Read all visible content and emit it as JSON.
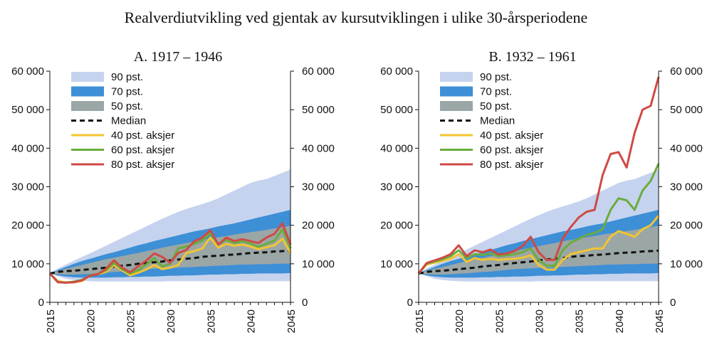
{
  "title": "Realverdiutvikling ved gjentak av kursutviklingen i ulike 30-årsperiodene",
  "colors": {
    "p90": "#c5d3ee",
    "p70": "#3d8fd6",
    "p50": "#9ba6a6",
    "median": "#111111",
    "s40": "#f2c531",
    "s60": "#6aac3e",
    "s80": "#cf4a45"
  },
  "chart_data": [
    {
      "type": "area",
      "panel_title": "A.   1917 – 1946",
      "x": [
        2015,
        2016,
        2017,
        2018,
        2019,
        2020,
        2021,
        2022,
        2023,
        2024,
        2025,
        2026,
        2027,
        2028,
        2029,
        2030,
        2031,
        2032,
        2033,
        2034,
        2035,
        2036,
        2037,
        2038,
        2039,
        2040,
        2041,
        2042,
        2043,
        2044,
        2045
      ],
      "ylim": [
        0,
        60000
      ],
      "xticks": [
        2015,
        2020,
        2025,
        2030,
        2035,
        2040,
        2045
      ],
      "yticks": [
        0,
        10000,
        20000,
        30000,
        40000,
        50000,
        60000
      ],
      "ytick_labels": [
        "0",
        "10 000",
        "20 000",
        "30 000",
        "40 000",
        "50 000",
        "60 000"
      ],
      "legend": [
        "90 pst.",
        "70 pst.",
        "50 pst.",
        "Median",
        "40 pst. aksjer",
        "60 pst. aksjer",
        "80 pst. aksjer"
      ],
      "bands": {
        "p90": {
          "upper": [
            7500,
            8800,
            9800,
            10800,
            11800,
            12700,
            13700,
            14700,
            15700,
            16700,
            17700,
            18700,
            19700,
            20700,
            21700,
            22600,
            23500,
            24200,
            24900,
            25500,
            26200,
            27000,
            28000,
            29000,
            30000,
            31000,
            31600,
            32000,
            32800,
            33600,
            34500
          ],
          "lower": [
            7500,
            6800,
            6100,
            5800,
            5600,
            5500,
            5400,
            5400,
            5400,
            5400,
            5400,
            5400,
            5400,
            5400,
            5400,
            5500,
            5500,
            5500,
            5500,
            5500,
            5500,
            5500,
            5500,
            5500,
            5500,
            5500,
            5500,
            5500,
            5500,
            5500,
            5500
          ]
        },
        "p70": {
          "upper": [
            7500,
            8400,
            9200,
            10000,
            10700,
            11300,
            11900,
            12500,
            13000,
            13600,
            14200,
            14800,
            15300,
            15900,
            16400,
            16900,
            17400,
            17900,
            18400,
            18800,
            19200,
            19700,
            20100,
            20500,
            21000,
            21500,
            22000,
            22500,
            23000,
            23500,
            24000
          ],
          "lower": [
            7500,
            7000,
            6700,
            6500,
            6400,
            6400,
            6400,
            6400,
            6500,
            6500,
            6600,
            6600,
            6700,
            6700,
            6800,
            6900,
            6900,
            7000,
            7000,
            7100,
            7200,
            7200,
            7300,
            7300,
            7400,
            7400,
            7500,
            7500,
            7500,
            7500,
            7600
          ]
        },
        "p50": {
          "upper": [
            7500,
            8100,
            8700,
            9200,
            9700,
            10200,
            10700,
            11200,
            11600,
            12000,
            12400,
            12800,
            13300,
            13700,
            14200,
            14600,
            15000,
            15400,
            15800,
            16200,
            16500,
            16900,
            17200,
            17600,
            17900,
            18200,
            18500,
            18800,
            19200,
            19500,
            19900
          ],
          "lower": [
            7500,
            7300,
            7200,
            7200,
            7300,
            7400,
            7500,
            7700,
            7900,
            8000,
            8200,
            8400,
            8600,
            8700,
            8800,
            8900,
            9000,
            9100,
            9200,
            9300,
            9400,
            9500,
            9600,
            9700,
            9800,
            9800,
            9900,
            9900,
            10000,
            10000,
            10100
          ]
        }
      },
      "series": [
        {
          "name": "Median",
          "key": "median",
          "values": [
            7500,
            7900,
            8100,
            8200,
            8400,
            8600,
            8800,
            9000,
            9300,
            9500,
            9700,
            10000,
            10200,
            10400,
            10600,
            10900,
            11100,
            11300,
            11500,
            11800,
            12000,
            12100,
            12300,
            12400,
            12600,
            12800,
            12900,
            13000,
            13200,
            13300,
            13400
          ]
        },
        {
          "name": "40 pst. aksjer",
          "key": "s40",
          "values": [
            7500,
            5500,
            5200,
            5200,
            5500,
            7000,
            7300,
            7900,
            9700,
            8300,
            7000,
            7700,
            8500,
            9700,
            8600,
            9000,
            9700,
            12800,
            13300,
            14000,
            16800,
            14200,
            15200,
            14700,
            15000,
            14500,
            13800,
            14300,
            14800,
            16500,
            12800
          ]
        },
        {
          "name": "60 pst. aksjer",
          "key": "s60",
          "values": [
            7500,
            5300,
            5100,
            5400,
            5800,
            7000,
            7400,
            8300,
            10200,
            8600,
            7500,
            8300,
            9800,
            11500,
            9300,
            10000,
            14000,
            14500,
            15200,
            16000,
            18000,
            15000,
            16200,
            15400,
            15800,
            15300,
            14400,
            15200,
            16000,
            19000,
            14000
          ]
        },
        {
          "name": "80 pst. aksjer",
          "key": "s80",
          "values": [
            7500,
            5200,
            5100,
            5200,
            5700,
            6900,
            7300,
            8700,
            10900,
            9000,
            7800,
            9300,
            10800,
            12700,
            11800,
            10300,
            12800,
            13600,
            15800,
            16800,
            18700,
            15000,
            16800,
            15900,
            16400,
            15900,
            15400,
            16800,
            17800,
            20500,
            15000
          ]
        }
      ]
    },
    {
      "type": "area",
      "panel_title": "B. 1932 – 1961",
      "x": [
        2015,
        2016,
        2017,
        2018,
        2019,
        2020,
        2021,
        2022,
        2023,
        2024,
        2025,
        2026,
        2027,
        2028,
        2029,
        2030,
        2031,
        2032,
        2033,
        2034,
        2035,
        2036,
        2037,
        2038,
        2039,
        2040,
        2041,
        2042,
        2043,
        2044,
        2045
      ],
      "ylim": [
        0,
        60000
      ],
      "xticks": [
        2015,
        2020,
        2025,
        2030,
        2035,
        2040,
        2045
      ],
      "yticks": [
        0,
        10000,
        20000,
        30000,
        40000,
        50000,
        60000
      ],
      "ytick_labels": [
        "0",
        "10 000",
        "20 000",
        "30 000",
        "40 000",
        "50 000",
        "60 000"
      ],
      "legend": [
        "90 pst.",
        "70 pst.",
        "50 pst.",
        "Median",
        "40 pst. aksjer",
        "60 pst. aksjer",
        "80 pst. aksjer"
      ],
      "bands": {
        "p90": {
          "upper": [
            7500,
            8800,
            9800,
            10800,
            11800,
            12700,
            13700,
            14700,
            15700,
            16700,
            17700,
            18700,
            19700,
            20700,
            21700,
            22600,
            23500,
            24200,
            24900,
            25500,
            26200,
            27000,
            28000,
            29000,
            30000,
            31000,
            31600,
            32000,
            32800,
            33600,
            34500
          ],
          "lower": [
            7500,
            6800,
            6100,
            5800,
            5600,
            5500,
            5400,
            5400,
            5400,
            5400,
            5400,
            5400,
            5400,
            5400,
            5400,
            5500,
            5500,
            5500,
            5500,
            5500,
            5500,
            5500,
            5500,
            5500,
            5500,
            5500,
            5500,
            5500,
            5500,
            5500,
            5500
          ]
        },
        "p70": {
          "upper": [
            7500,
            8400,
            9200,
            10000,
            10700,
            11300,
            11900,
            12500,
            13000,
            13600,
            14200,
            14800,
            15300,
            15900,
            16400,
            16900,
            17400,
            17900,
            18400,
            18800,
            19200,
            19700,
            20100,
            20500,
            21000,
            21500,
            22000,
            22500,
            23000,
            23500,
            24000
          ],
          "lower": [
            7500,
            7000,
            6700,
            6500,
            6400,
            6400,
            6400,
            6400,
            6500,
            6500,
            6600,
            6600,
            6700,
            6700,
            6800,
            6900,
            6900,
            7000,
            7000,
            7100,
            7200,
            7200,
            7300,
            7300,
            7400,
            7400,
            7500,
            7500,
            7500,
            7500,
            7600
          ]
        },
        "p50": {
          "upper": [
            7500,
            8100,
            8700,
            9200,
            9700,
            10200,
            10700,
            11200,
            11600,
            12000,
            12400,
            12800,
            13300,
            13700,
            14200,
            14600,
            15000,
            15400,
            15800,
            16200,
            16500,
            16900,
            17200,
            17600,
            17900,
            18200,
            18500,
            18800,
            19200,
            19500,
            19900
          ],
          "lower": [
            7500,
            7300,
            7200,
            7200,
            7300,
            7400,
            7500,
            7700,
            7900,
            8000,
            8200,
            8400,
            8600,
            8700,
            8800,
            8900,
            9000,
            9100,
            9200,
            9300,
            9400,
            9500,
            9600,
            9700,
            9800,
            9800,
            9900,
            9900,
            10000,
            10000,
            10100
          ]
        }
      },
      "series": [
        {
          "name": "Median",
          "key": "median",
          "values": [
            7500,
            7900,
            8100,
            8200,
            8400,
            8600,
            8800,
            9000,
            9300,
            9500,
            9700,
            10000,
            10200,
            10400,
            10600,
            10900,
            11100,
            11300,
            11500,
            11800,
            12000,
            12100,
            12300,
            12400,
            12600,
            12800,
            12900,
            13000,
            13200,
            13300,
            13400
          ]
        },
        {
          "name": "40 pst. aksjer",
          "key": "s40",
          "values": [
            7500,
            9800,
            10300,
            10800,
            11300,
            12500,
            10500,
            11500,
            11000,
            11300,
            11000,
            11200,
            11300,
            11600,
            12200,
            9700,
            8500,
            8500,
            11000,
            12500,
            13000,
            13500,
            14000,
            14000,
            17000,
            18500,
            17800,
            17000,
            19000,
            20000,
            22500
          ]
        },
        {
          "name": "60 pst. aksjer",
          "key": "s60",
          "values": [
            7500,
            10000,
            10600,
            11200,
            12000,
            13500,
            11500,
            12500,
            12300,
            12700,
            12000,
            12200,
            12500,
            13000,
            14000,
            11000,
            9500,
            9500,
            13500,
            15500,
            16500,
            17500,
            18000,
            19000,
            24000,
            27000,
            26500,
            24000,
            29000,
            31500,
            36000
          ]
        },
        {
          "name": "80 pst. aksjer",
          "key": "s80",
          "values": [
            7500,
            10200,
            10900,
            11600,
            12500,
            14800,
            12000,
            13500,
            13000,
            13700,
            12400,
            12700,
            13300,
            14600,
            17000,
            13000,
            11000,
            11000,
            16500,
            19500,
            22000,
            23500,
            24000,
            33000,
            38500,
            39000,
            35000,
            44000,
            50000,
            51000,
            58500
          ]
        }
      ]
    }
  ]
}
